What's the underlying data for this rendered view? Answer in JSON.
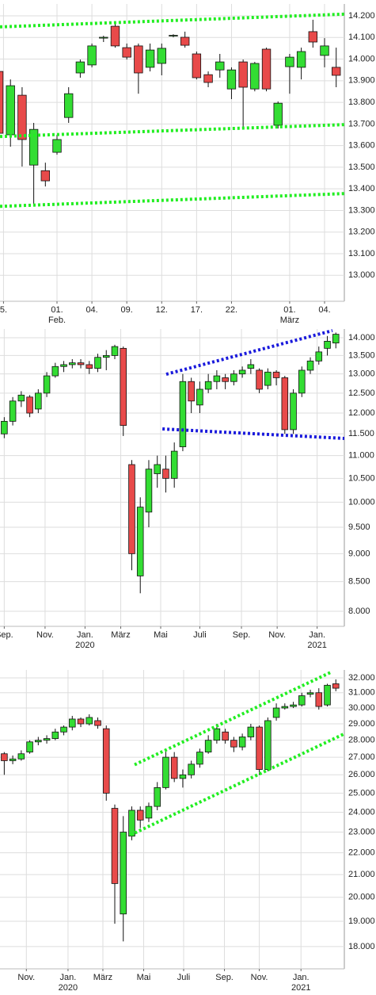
{
  "chart_data": [
    {
      "type": "candlestick",
      "log": false,
      "grid": true,
      "up_color": "#33dd33",
      "down_color": "#e84a4a",
      "xlim": [
        0.1,
        29.7
      ],
      "ylim": [
        12880,
        14255
      ],
      "xticks": [
        {
          "value": 0.4,
          "label": "5."
        },
        {
          "value": 5,
          "label": "01.",
          "sublabel": "Feb."
        },
        {
          "value": 8,
          "label": "04."
        },
        {
          "value": 11,
          "label": "09."
        },
        {
          "value": 14,
          "label": "12."
        },
        {
          "value": 17,
          "label": "17."
        },
        {
          "value": 20,
          "label": "22."
        },
        {
          "value": 25,
          "label": "01.",
          "sublabel": "März"
        },
        {
          "value": 28,
          "label": "04."
        }
      ],
      "yticks": [
        {
          "value": 13000,
          "label": "13.000"
        },
        {
          "value": 13100,
          "label": "13.100"
        },
        {
          "value": 13200,
          "label": "13.200"
        },
        {
          "value": 13300,
          "label": "13.300"
        },
        {
          "value": 13400,
          "label": "13.400"
        },
        {
          "value": 13500,
          "label": "13.500"
        },
        {
          "value": 13600,
          "label": "13.600"
        },
        {
          "value": 13700,
          "label": "13.700"
        },
        {
          "value": 13800,
          "label": "13.800"
        },
        {
          "value": 13900,
          "label": "13.900"
        },
        {
          "value": 14000,
          "label": "14.000"
        },
        {
          "value": 14100,
          "label": "14.100"
        },
        {
          "value": 14200,
          "label": "14.200"
        }
      ],
      "x": [
        0,
        1,
        2,
        3,
        4,
        5,
        6,
        7,
        8,
        9,
        10,
        11,
        12,
        13,
        14,
        15,
        16,
        17,
        18,
        19,
        20,
        21,
        22,
        23,
        24,
        25,
        26,
        27,
        28,
        29
      ],
      "open": [
        13943,
        13650,
        13833,
        13510,
        13484,
        13569,
        13730,
        13936,
        13973,
        14097,
        14152,
        14053,
        14061,
        13962,
        13980,
        14108,
        14101,
        14024,
        13928,
        13950,
        13862,
        13987,
        13862,
        14046,
        13694,
        13965,
        13962,
        14127,
        14017,
        13962
      ],
      "high": [
        13980,
        13906,
        13870,
        13705,
        13521,
        13650,
        13870,
        13998,
        14072,
        14108,
        14163,
        14072,
        14072,
        14072,
        14072,
        14115,
        14127,
        14035,
        13943,
        14024,
        13962,
        13998,
        13987,
        14053,
        13804,
        14024,
        14053,
        14182,
        14097,
        14053
      ],
      "low": [
        13620,
        13595,
        13503,
        13327,
        13411,
        13558,
        13705,
        13914,
        13962,
        14079,
        14053,
        13998,
        13840,
        13943,
        13925,
        14101,
        14053,
        13906,
        13870,
        13914,
        13815,
        13686,
        13851,
        13851,
        13679,
        13840,
        13906,
        14053,
        13962,
        13870
      ],
      "close": [
        13657,
        13877,
        13628,
        13675,
        13437,
        13628,
        13840,
        13987,
        14061,
        14101,
        14061,
        14009,
        13936,
        14042,
        14050,
        14110,
        14064,
        13914,
        13892,
        13987,
        13950,
        13870,
        13980,
        13862,
        13796,
        14009,
        14035,
        14079,
        14061,
        13925
      ],
      "lines": [
        {
          "color": "#22ee22",
          "x": [
            0.1,
            29.7
          ],
          "y": [
            14149,
            14208
          ]
        },
        {
          "color": "#22ee22",
          "x": [
            0.1,
            29.7
          ],
          "y": [
            13642,
            13697
          ]
        },
        {
          "color": "#22ee22",
          "x": [
            0.1,
            29.7
          ],
          "y": [
            13319,
            13378
          ]
        }
      ]
    },
    {
      "type": "candlestick",
      "log": true,
      "grid": true,
      "up_color": "#33dd33",
      "down_color": "#e84a4a",
      "xlim": [
        -0.5,
        40
      ],
      "ylim": [
        7757,
        14252
      ],
      "xticks": [
        {
          "value": 0,
          "label": "Sep."
        },
        {
          "value": 4.8,
          "label": "Nov."
        },
        {
          "value": 9.5,
          "label": "Jan.",
          "sublabel": "2020"
        },
        {
          "value": 13.7,
          "label": "März"
        },
        {
          "value": 18.4,
          "label": "Mai"
        },
        {
          "value": 23,
          "label": "Juli"
        },
        {
          "value": 27.9,
          "label": "Sep."
        },
        {
          "value": 32.1,
          "label": "Nov."
        },
        {
          "value": 36.8,
          "label": "Jan.",
          "sublabel": "2021"
        }
      ],
      "yticks": [
        {
          "value": 8000,
          "label": "8.000"
        },
        {
          "value": 8500,
          "label": "8.500"
        },
        {
          "value": 9000,
          "label": "9.000"
        },
        {
          "value": 9500,
          "label": "9.500"
        },
        {
          "value": 10000,
          "label": "10.000"
        },
        {
          "value": 10500,
          "label": "10.500"
        },
        {
          "value": 11000,
          "label": "11.000"
        },
        {
          "value": 11500,
          "label": "11.500"
        },
        {
          "value": 12000,
          "label": "12.000"
        },
        {
          "value": 12500,
          "label": "12.500"
        },
        {
          "value": 13000,
          "label": "13.000"
        },
        {
          "value": 13500,
          "label": "13.500"
        },
        {
          "value": 14000,
          "label": "14.000"
        }
      ],
      "x": [
        0,
        1,
        2,
        3,
        4,
        5,
        6,
        7,
        8,
        9,
        10,
        11,
        12,
        13,
        14,
        15,
        16,
        17,
        18,
        19,
        20,
        21,
        22,
        23,
        24,
        25,
        26,
        27,
        28,
        29,
        30,
        31,
        32,
        33,
        34,
        35,
        36,
        37,
        38,
        39
      ],
      "open": [
        11500,
        11800,
        12300,
        12400,
        12100,
        12500,
        12950,
        13200,
        13250,
        13300,
        13250,
        13150,
        13450,
        13500,
        13700,
        10800,
        8600,
        9800,
        10600,
        10700,
        10500,
        11200,
        12800,
        12200,
        12600,
        12800,
        12900,
        12800,
        13000,
        13150,
        13100,
        12700,
        13050,
        12900,
        11600,
        12500,
        13100,
        13350,
        13700,
        13850
      ],
      "high": [
        11900,
        12400,
        12550,
        12450,
        12600,
        13050,
        13300,
        13350,
        13400,
        13400,
        13350,
        13550,
        13650,
        13800,
        13750,
        10900,
        10100,
        10900,
        11000,
        11000,
        11300,
        13000,
        12900,
        12800,
        13000,
        13100,
        13000,
        13100,
        13200,
        13400,
        13150,
        13150,
        13100,
        12950,
        12600,
        13200,
        13450,
        13750,
        14050,
        14150
      ],
      "low": [
        11400,
        11700,
        12150,
        11900,
        12000,
        12400,
        12900,
        13050,
        13150,
        13150,
        13000,
        13050,
        13100,
        13400,
        11450,
        8700,
        8300,
        9500,
        10300,
        10200,
        10300,
        11100,
        12000,
        12000,
        12500,
        12600,
        12600,
        12700,
        12900,
        13000,
        12500,
        12600,
        12700,
        11500,
        11500,
        12400,
        13000,
        13250,
        13500,
        13700
      ],
      "close": [
        11800,
        12300,
        12450,
        12000,
        12500,
        12950,
        13200,
        13250,
        13300,
        13250,
        13150,
        13450,
        13500,
        13750,
        11700,
        9000,
        9900,
        10700,
        10800,
        10500,
        11100,
        12800,
        12300,
        12600,
        12800,
        12950,
        12800,
        13000,
        13100,
        13250,
        12600,
        13050,
        12900,
        11600,
        12500,
        13100,
        13350,
        13600,
        13900,
        14100
      ],
      "lines": [
        {
          "color": "#1a1adc",
          "x": [
            19.05,
            38.6
          ],
          "y": [
            12993,
            14206
          ]
        },
        {
          "color": "#1a1adc",
          "x": [
            18.6,
            40
          ],
          "y": [
            11617,
            11394
          ]
        }
      ]
    },
    {
      "type": "candlestick",
      "log": true,
      "grid": true,
      "up_color": "#33dd33",
      "down_color": "#e84a4a",
      "xlim": [
        -0.5,
        40
      ],
      "ylim": [
        17160,
        32550
      ],
      "xticks": [
        {
          "value": 2.6,
          "label": "Nov."
        },
        {
          "value": 7.5,
          "label": "Jan.",
          "sublabel": "2020"
        },
        {
          "value": 11.6,
          "label": "März"
        },
        {
          "value": 16.4,
          "label": "Mai"
        },
        {
          "value": 21.1,
          "label": "Juli"
        },
        {
          "value": 25.9,
          "label": "Sep."
        },
        {
          "value": 30,
          "label": "Nov."
        },
        {
          "value": 34.9,
          "label": "Jan.",
          "sublabel": "2021"
        }
      ],
      "yticks": [
        {
          "value": 18000,
          "label": "18.000"
        },
        {
          "value": 19000,
          "label": "19.000"
        },
        {
          "value": 20000,
          "label": "20.000"
        },
        {
          "value": 21000,
          "label": "21.000"
        },
        {
          "value": 22000,
          "label": "22.000"
        },
        {
          "value": 23000,
          "label": "23.000"
        },
        {
          "value": 24000,
          "label": "24.000"
        },
        {
          "value": 25000,
          "label": "25.000"
        },
        {
          "value": 26000,
          "label": "26.000"
        },
        {
          "value": 27000,
          "label": "27.000"
        },
        {
          "value": 28000,
          "label": "28.000"
        },
        {
          "value": 29000,
          "label": "29.000"
        },
        {
          "value": 30000,
          "label": "30.000"
        },
        {
          "value": 31000,
          "label": "31.000"
        },
        {
          "value": 32000,
          "label": "32.000"
        }
      ],
      "x": [
        0,
        1,
        2,
        3,
        4,
        5,
        6,
        7,
        8,
        9,
        10,
        11,
        12,
        13,
        14,
        15,
        16,
        17,
        18,
        19,
        20,
        21,
        22,
        23,
        24,
        25,
        26,
        27,
        28,
        29,
        30,
        31,
        32,
        33,
        34,
        35,
        36,
        37,
        38,
        39
      ],
      "open": [
        27200,
        26800,
        26900,
        27300,
        27900,
        28000,
        28100,
        28500,
        28800,
        29300,
        29000,
        29200,
        28700,
        24200,
        19300,
        22800,
        24100,
        23700,
        24300,
        25300,
        27000,
        25800,
        26000,
        26600,
        27300,
        28000,
        28500,
        28000,
        27600,
        28200,
        28800,
        26300,
        29400,
        30000,
        30100,
        30200,
        30900,
        31000,
        30200,
        31600
      ],
      "high": [
        27300,
        27100,
        27400,
        28000,
        28200,
        28300,
        28700,
        28900,
        29500,
        29400,
        29600,
        29400,
        28900,
        24400,
        23800,
        24300,
        24300,
        24500,
        25600,
        27500,
        27300,
        26300,
        26800,
        27500,
        28300,
        29000,
        28700,
        28200,
        28400,
        29000,
        28900,
        29400,
        30300,
        30300,
        30400,
        31000,
        31200,
        31300,
        31600,
        31900
      ],
      "low": [
        26000,
        26600,
        26800,
        27200,
        27700,
        27800,
        28000,
        28300,
        28600,
        28800,
        28900,
        28700,
        24600,
        18900,
        18200,
        22600,
        23200,
        23500,
        24100,
        25200,
        25600,
        25300,
        25800,
        26400,
        27200,
        27800,
        27800,
        27300,
        27400,
        28000,
        26000,
        26200,
        29200,
        29900,
        30000,
        30100,
        30700,
        29900,
        30100,
        31100
      ],
      "close": [
        26800,
        26900,
        27200,
        27900,
        28000,
        28100,
        28500,
        28800,
        29300,
        29000,
        29400,
        28900,
        25000,
        20600,
        23000,
        24100,
        23600,
        24300,
        25300,
        27000,
        25800,
        26000,
        26600,
        27300,
        28000,
        28700,
        28000,
        27600,
        28200,
        28800,
        26300,
        29200,
        30000,
        30100,
        30200,
        30800,
        31000,
        30100,
        31500,
        31300
      ],
      "lines": [
        {
          "color": "#22ee22",
          "x": [
            15.33,
            38.4
          ],
          "y": [
            26570,
            32385
          ]
        },
        {
          "color": "#22ee22",
          "x": [
            14.86,
            40
          ],
          "y": [
            22860,
            28390
          ]
        }
      ]
    }
  ]
}
